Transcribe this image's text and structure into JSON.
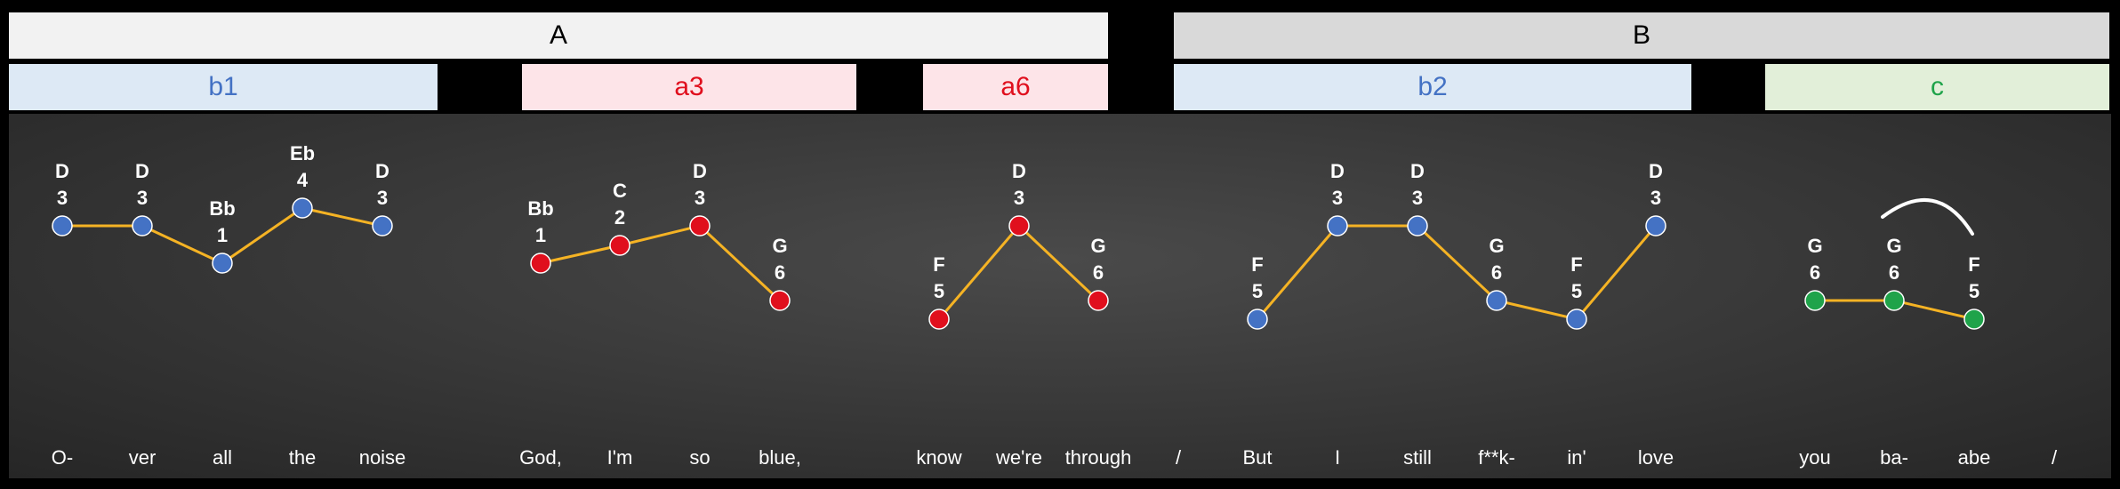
{
  "sections": [
    {
      "label": "A",
      "bg": "#f2f2f2"
    },
    {
      "label": "B",
      "bg": "#d9d9d9"
    }
  ],
  "phrases": [
    {
      "label": "b1",
      "bg": "#dde9f5",
      "color": "#4472c4"
    },
    {
      "label": "a3",
      "bg": "#fde4e8",
      "color": "#e00f1d"
    },
    {
      "label": "a6",
      "bg": "#fde4e8",
      "color": "#e00f1d"
    },
    {
      "label": "b2",
      "bg": "#dde9f5",
      "color": "#4472c4"
    },
    {
      "label": "c",
      "bg": "#e2efd9",
      "color": "#1fa34a"
    }
  ],
  "colors": {
    "blue_note": "#4472c4",
    "red_note": "#e00f1d",
    "green_note": "#1fa34a",
    "connector": "#f5b324",
    "slur": "#ffffff"
  },
  "groups": [
    {
      "phrase": "b1",
      "color": "blue_note",
      "notes": [
        {
          "note": "D",
          "degree": "3",
          "lyric": "O-"
        },
        {
          "note": "D",
          "degree": "3",
          "lyric": "ver"
        },
        {
          "note": "Bb",
          "degree": "1",
          "lyric": "all"
        },
        {
          "note": "Eb",
          "degree": "4",
          "lyric": "the"
        },
        {
          "note": "D",
          "degree": "3",
          "lyric": "noise"
        }
      ]
    },
    {
      "phrase": "a3",
      "color": "red_note",
      "notes": [
        {
          "note": "Bb",
          "degree": "1",
          "lyric": "God,"
        },
        {
          "note": "C",
          "degree": "2",
          "lyric": "I'm"
        },
        {
          "note": "D",
          "degree": "3",
          "lyric": "so"
        },
        {
          "note": "G",
          "degree": "6",
          "lyric": "blue,"
        }
      ]
    },
    {
      "phrase": "a6",
      "color": "red_note",
      "notes": [
        {
          "note": "F",
          "degree": "5",
          "lyric": "know"
        },
        {
          "note": "D",
          "degree": "3",
          "lyric": "we're"
        },
        {
          "note": "G",
          "degree": "6",
          "lyric": "through"
        }
      ]
    },
    {
      "phrase": "b2",
      "color": "blue_note",
      "notes": [
        {
          "note": "F",
          "degree": "5",
          "lyric": "But"
        },
        {
          "note": "D",
          "degree": "3",
          "lyric": "I"
        },
        {
          "note": "D",
          "degree": "3",
          "lyric": "still"
        },
        {
          "note": "G",
          "degree": "6",
          "lyric": "f**k-"
        },
        {
          "note": "F",
          "degree": "5",
          "lyric": "in'"
        },
        {
          "note": "D",
          "degree": "3",
          "lyric": "love"
        }
      ]
    },
    {
      "phrase": "c",
      "color": "green_note",
      "notes": [
        {
          "note": "G",
          "degree": "6",
          "lyric": "you"
        },
        {
          "note": "G",
          "degree": "6",
          "lyric": "ba-"
        },
        {
          "note": "F",
          "degree": "5",
          "lyric": "abe"
        }
      ]
    }
  ],
  "separators": [
    "/",
    "/"
  ]
}
